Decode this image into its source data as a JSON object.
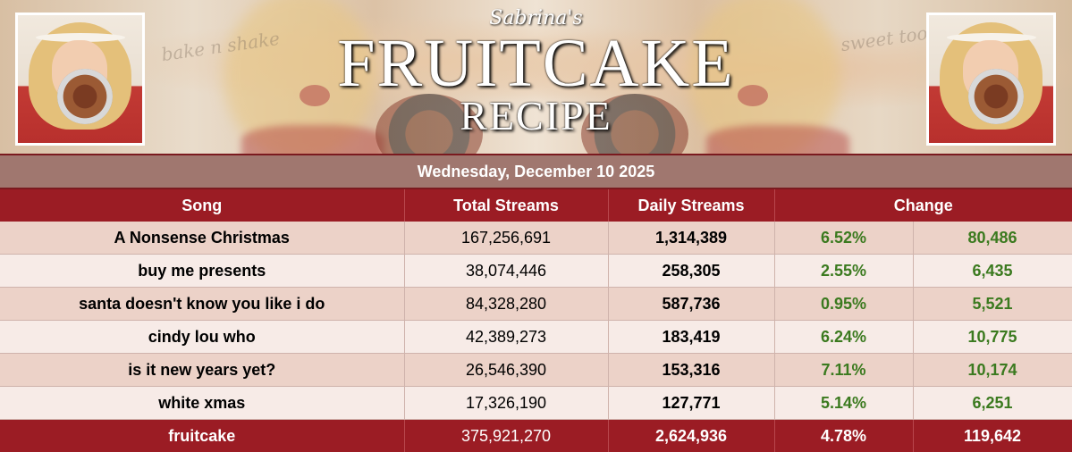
{
  "banner": {
    "script_title": "Sabrina's",
    "title_main": "FRUITCAKE",
    "title_sub": "RECIPE",
    "handwriting_left": "bake n shake",
    "handwriting_right": "sweet tooth"
  },
  "date": "Wednesday, December 10 2025",
  "headers": {
    "song": "Song",
    "total": "Total Streams",
    "daily": "Daily Streams",
    "change": "Change"
  },
  "rows": [
    {
      "song": "A Nonsense Christmas",
      "total": "167,256,691",
      "daily": "1,314,389",
      "pct": "6.52%",
      "delta": "80,486"
    },
    {
      "song": "buy me presents",
      "total": "38,074,446",
      "daily": "258,305",
      "pct": "2.55%",
      "delta": "6,435"
    },
    {
      "song": "santa doesn't know you like i do",
      "total": "84,328,280",
      "daily": "587,736",
      "pct": "0.95%",
      "delta": "5,521"
    },
    {
      "song": "cindy lou who",
      "total": "42,389,273",
      "daily": "183,419",
      "pct": "6.24%",
      "delta": "10,775"
    },
    {
      "song": "is it new years yet?",
      "total": "26,546,390",
      "daily": "153,316",
      "pct": "7.11%",
      "delta": "10,174"
    },
    {
      "song": "white xmas",
      "total": "17,326,190",
      "daily": "127,771",
      "pct": "5.14%",
      "delta": "6,251"
    }
  ],
  "total_row": {
    "song": "fruitcake",
    "total": "375,921,270",
    "daily": "2,624,936",
    "pct": "4.78%",
    "delta": "119,642"
  },
  "colors": {
    "header_red": "#9b1c24",
    "date_bar": "#a0776f",
    "row_odd": "#ecd2c8",
    "row_even": "#f7ebe7",
    "change_green": "#3b7a1f"
  }
}
